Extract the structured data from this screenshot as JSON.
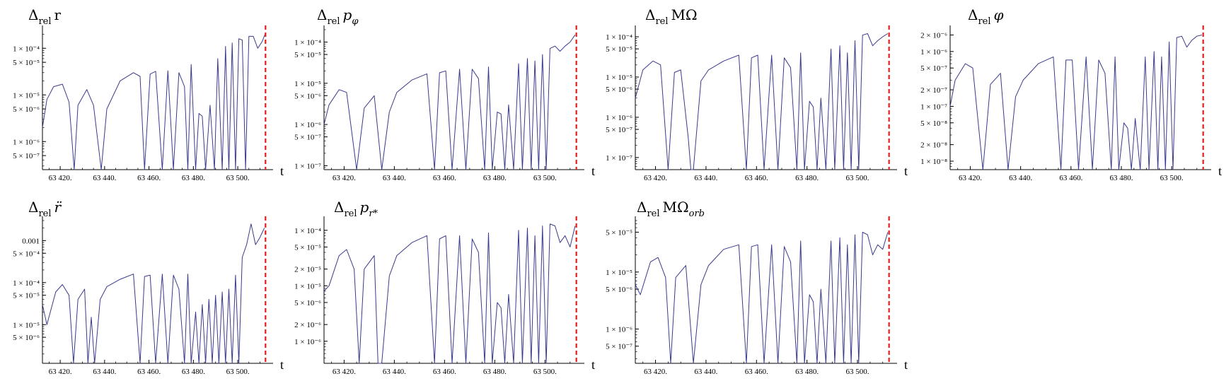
{
  "figure": {
    "caption": ""
  },
  "chart_data": [
    {
      "type": "line",
      "title_main": "Δ",
      "title_sub": "rel",
      "title_var": "r",
      "title_var_sub": "",
      "title_var_style": "roman",
      "xlabel": "t",
      "ylabel": "",
      "yscale": "log",
      "xlim": [
        63412,
        63514
      ],
      "ylim": [
        2.5e-07,
        0.00025
      ],
      "xticks": [
        63420,
        63440,
        63460,
        63480,
        63500
      ],
      "xtick_labels": [
        "63 420.",
        "63 440.",
        "63 460.",
        "63 480.",
        "63 500."
      ],
      "yticks": [
        0.0001,
        5e-05,
        1e-05,
        5e-06,
        1e-06,
        5e-07
      ],
      "ytick_labels": [
        "1 × 10⁻⁴",
        "5 × 10⁻⁵",
        "1 × 10⁻⁵",
        "5 × 10⁻⁶",
        "1 × 10⁻⁶",
        "5 × 10⁻⁷"
      ],
      "vline_x": 63512.5,
      "series": [
        {
          "x": [
            63412,
            63414,
            63417,
            63421,
            63424,
            63426.3,
            63428,
            63432,
            63435,
            63438.5,
            63441,
            63447,
            63453,
            63456,
            63458,
            63460.5,
            63463,
            63466,
            63468.5,
            63471,
            63473.5,
            63476,
            63477.5,
            63479,
            63481,
            63482.5,
            63484,
            63485.5,
            63487.5,
            63489.5,
            63491,
            63493,
            63494.5,
            63496,
            63497.5,
            63499,
            63500.5,
            63502,
            63503.5,
            63505,
            63507,
            63509,
            63511,
            63512.3
          ],
          "y": [
            2e-06,
            8e-06,
            1.5e-05,
            1.7e-05,
            7e-06,
            2.5e-07,
            6e-06,
            1.3e-05,
            6e-06,
            2.5e-07,
            5e-06,
            2e-05,
            3e-05,
            2.5e-05,
            2.5e-07,
            2.8e-05,
            3.2e-05,
            2.5e-07,
            3.3e-05,
            2.5e-07,
            3e-05,
            1.5e-05,
            2.5e-07,
            4.5e-05,
            2.5e-07,
            4e-06,
            3.5e-06,
            2.5e-07,
            6e-06,
            2.5e-07,
            6e-05,
            2.5e-07,
            0.00011,
            2.5e-07,
            0.00013,
            2.5e-07,
            0.00016,
            0.00015,
            2.5e-07,
            0.00018,
            0.00018,
            0.0001,
            0.00014,
            0.0002
          ]
        }
      ]
    },
    {
      "type": "line",
      "title_main": "Δ",
      "title_sub": "rel",
      "title_var": "p",
      "title_var_sub": "φ",
      "title_var_style": "italic",
      "xlabel": "t",
      "ylabel": "",
      "yscale": "log",
      "xlim": [
        63412,
        63514
      ],
      "ylim": [
        8e-08,
        0.0002
      ],
      "xticks": [
        63420,
        63440,
        63460,
        63480,
        63500
      ],
      "xtick_labels": [
        "63 420.",
        "63 440.",
        "63 460.",
        "63 480.",
        "63 500."
      ],
      "yticks": [
        0.0001,
        5e-05,
        1e-05,
        5e-06,
        1e-06,
        5e-07,
        1e-07
      ],
      "ytick_labels": [
        "1 × 10⁻⁴",
        "5 × 10⁻⁵",
        "1 × 10⁻⁵",
        "5 × 10⁻⁶",
        "1 × 10⁻⁶",
        "5 × 10⁻⁷",
        "1 × 10⁻⁷"
      ],
      "vline_x": 63512.5,
      "series": [
        {
          "x": [
            63412,
            63414,
            63418,
            63421,
            63425,
            63428,
            63432,
            63435,
            63438,
            63441,
            63447,
            63453,
            63456,
            63458,
            63460.5,
            63463,
            63466,
            63468.5,
            63471,
            63473.5,
            63476,
            63477.5,
            63479,
            63481,
            63482.5,
            63484,
            63485.5,
            63487.5,
            63489.5,
            63491,
            63493,
            63494.5,
            63496,
            63497.5,
            63499,
            63500.5,
            63502,
            63504,
            63506,
            63508,
            63510,
            63512
          ],
          "y": [
            1e-06,
            3e-06,
            7e-06,
            6e-06,
            8e-08,
            2.5e-06,
            5e-06,
            8e-08,
            2e-06,
            6e-06,
            1.2e-05,
            1.7e-05,
            8e-08,
            1.8e-05,
            2e-05,
            8e-08,
            2.2e-05,
            8e-08,
            2.2e-05,
            1.3e-05,
            8e-08,
            2.5e-05,
            8e-08,
            2e-06,
            1.8e-06,
            8e-08,
            3e-06,
            8e-08,
            3e-05,
            8e-08,
            4e-05,
            8e-08,
            3.5e-05,
            8e-08,
            5e-05,
            8e-08,
            7e-05,
            8e-05,
            6e-05,
            8e-05,
            0.0001,
            0.00015
          ]
        }
      ]
    },
    {
      "type": "line",
      "title_main": "Δ",
      "title_sub": "rel",
      "title_var": "MΩ",
      "title_var_sub": "",
      "title_var_style": "roman",
      "xlabel": "t",
      "ylabel": "",
      "yscale": "log",
      "xlim": [
        63412,
        63514
      ],
      "ylim": [
        5e-08,
        0.00015
      ],
      "xticks": [
        63420,
        63440,
        63460,
        63480,
        63500
      ],
      "xtick_labels": [
        "63 420.",
        "63 440.",
        "63 460.",
        "63 480.",
        "63 500."
      ],
      "yticks": [
        0.0001,
        5e-05,
        1e-05,
        5e-06,
        1e-06,
        5e-07,
        1e-07
      ],
      "ytick_labels": [
        "1 × 10⁻⁴",
        "5 × 10⁻⁵",
        "1 × 10⁻⁵",
        "5 × 10⁻⁶",
        "1 × 10⁻⁶",
        "5 × 10⁻⁷",
        "1 × 10⁻⁷"
      ],
      "vline_x": 63512.5,
      "series": [
        {
          "x": [
            63412,
            63415,
            63419,
            63422,
            63425,
            63427.5,
            63430,
            63433,
            63434,
            63435,
            63438,
            63441,
            63447,
            63453,
            63456,
            63458,
            63460.5,
            63463,
            63466,
            63468.5,
            63471,
            63473.5,
            63476,
            63477.5,
            63479,
            63481,
            63482.5,
            63484,
            63485.5,
            63487.5,
            63489.5,
            63491,
            63493,
            63494.5,
            63496,
            63497.5,
            63499,
            63500.5,
            63502,
            63504,
            63506,
            63508,
            63510,
            63512
          ],
          "y": [
            3e-06,
            1.5e-05,
            2.5e-05,
            2e-05,
            5e-08,
            1.3e-05,
            1.5e-05,
            3e-07,
            5e-08,
            5e-08,
            8e-06,
            1.5e-05,
            2.5e-05,
            3.5e-05,
            5e-08,
            3e-05,
            3.5e-05,
            5e-08,
            3.5e-05,
            5e-08,
            3e-05,
            1.7e-05,
            5e-08,
            4e-05,
            5e-08,
            2.5e-06,
            1.8e-06,
            5e-08,
            3e-06,
            5e-08,
            5e-05,
            5e-08,
            6e-05,
            5e-08,
            4e-05,
            5e-08,
            8e-05,
            5e-08,
            0.00011,
            0.00012,
            6e-05,
            8e-05,
            0.0001,
            0.00012
          ]
        }
      ]
    },
    {
      "type": "line",
      "title_main": "Δ",
      "title_sub": "rel",
      "title_var": "φ",
      "title_var_sub": "",
      "title_var_style": "italic",
      "xlabel": "t",
      "ylabel": "",
      "yscale": "log",
      "xlim": [
        63412,
        63514
      ],
      "ylim": [
        7e-09,
        2.5e-06
      ],
      "xticks": [
        63420,
        63440,
        63460,
        63480,
        63500
      ],
      "xtick_labels": [
        "63 420.",
        "63 440.",
        "63 460.",
        "63 480.",
        "63 500."
      ],
      "yticks": [
        2e-06,
        1e-06,
        5e-07,
        2e-07,
        1e-07,
        5e-08,
        2e-08,
        1e-08
      ],
      "ytick_labels": [
        "2 × 10⁻⁶",
        "1 × 10⁻⁶",
        "5 × 10⁻⁷",
        "2 × 10⁻⁷",
        "1 × 10⁻⁷",
        "5 × 10⁻⁸",
        "2 × 10⁻⁸",
        "1 × 10⁻⁸"
      ],
      "vline_x": 63512.5,
      "series": [
        {
          "x": [
            63412,
            63414,
            63418,
            63421,
            63425,
            63428,
            63432,
            63435,
            63438,
            63441,
            63447,
            63453,
            63456,
            63458,
            63460.5,
            63463,
            63466,
            63468.5,
            63471,
            63473.5,
            63476,
            63477.5,
            63479,
            63481,
            63482.5,
            63484,
            63485.5,
            63487.5,
            63489.5,
            63491,
            63493,
            63494.5,
            63496,
            63497.5,
            63499,
            63500.5,
            63502,
            63504,
            63506,
            63508,
            63510,
            63512
          ],
          "y": [
            1e-07,
            3e-07,
            6e-07,
            5e-07,
            7e-09,
            2.5e-07,
            4e-07,
            7e-09,
            1.5e-07,
            3e-07,
            6e-07,
            8e-07,
            7e-09,
            7e-07,
            7e-07,
            7e-09,
            8e-07,
            7e-09,
            7e-07,
            4e-07,
            7e-09,
            8e-07,
            7e-09,
            5e-08,
            4e-08,
            7e-09,
            6e-08,
            7e-09,
            8e-07,
            7e-09,
            1e-06,
            7e-09,
            8e-07,
            7e-09,
            1.5e-06,
            7e-09,
            1.8e-06,
            1.9e-06,
            1.2e-06,
            1.6e-06,
            1.9e-06,
            2e-06
          ]
        }
      ]
    },
    {
      "type": "line",
      "title_main": "Δ",
      "title_sub": "rel",
      "title_var": "r̈",
      "title_var_sub": "",
      "title_var_style": "italic",
      "xlabel": "t",
      "ylabel": "",
      "yscale": "log",
      "xlim": [
        63412,
        63514
      ],
      "ylim": [
        1.2e-06,
        0.003
      ],
      "xticks": [
        63420,
        63440,
        63460,
        63480,
        63500
      ],
      "xtick_labels": [
        "63 420.",
        "63 440.",
        "63 460.",
        "63 480.",
        "63 500."
      ],
      "yticks": [
        0.001,
        0.0005,
        0.0001,
        5e-05,
        1e-05,
        5e-06
      ],
      "ytick_labels": [
        "0.001",
        "5 × 10⁻⁴",
        "1 × 10⁻⁴",
        "5 × 10⁻⁵",
        "1 × 10⁻⁵",
        "5 × 10⁻⁶"
      ],
      "vline_x": 63512.5,
      "series": [
        {
          "x": [
            63412,
            63414,
            63418,
            63421,
            63424,
            63426,
            63428,
            63431,
            63432.5,
            63434,
            63435.5,
            63438,
            63441,
            63447,
            63453,
            63456,
            63458,
            63460.5,
            63463,
            63466,
            63468.5,
            63471,
            63473.5,
            63476,
            63477.5,
            63479,
            63481,
            63482.5,
            63484,
            63485.5,
            63487,
            63488.5,
            63490,
            63491.5,
            63493,
            63494.5,
            63496,
            63497.5,
            63499,
            63500.5,
            63502,
            63504,
            63506,
            63508,
            63510,
            63512
          ],
          "y": [
            3e-05,
            1e-05,
            6e-05,
            9e-05,
            5e-05,
            1.2e-06,
            4e-05,
            7e-05,
            1.2e-06,
            1.5e-05,
            1.2e-06,
            4e-05,
            8e-05,
            0.00012,
            0.00016,
            1.2e-06,
            0.00014,
            0.00015,
            1.2e-06,
            0.00016,
            1.2e-06,
            0.00015,
            7e-05,
            1.2e-06,
            0.00016,
            1.2e-06,
            2e-05,
            1.2e-06,
            3e-05,
            1.2e-06,
            4e-05,
            1.2e-06,
            5e-05,
            1.2e-06,
            6e-05,
            1.2e-06,
            7e-05,
            1.2e-06,
            0.00015,
            1.2e-06,
            0.0004,
            0.0008,
            0.0025,
            0.0008,
            0.0012,
            0.002
          ]
        }
      ]
    },
    {
      "type": "line",
      "title_main": "Δ",
      "title_sub": "rel",
      "title_var": "p",
      "title_var_sub": "r*",
      "title_var_style": "italic",
      "xlabel": "t",
      "ylabel": "",
      "yscale": "log",
      "xlim": [
        63412,
        63514
      ],
      "ylim": [
        4e-07,
        0.00015
      ],
      "xticks": [
        63420,
        63440,
        63460,
        63480,
        63500
      ],
      "xtick_labels": [
        "63 420.",
        "63 440.",
        "63 460.",
        "63 480.",
        "63 500."
      ],
      "yticks": [
        0.0001,
        5e-05,
        2e-05,
        1e-05,
        5e-06,
        2e-06,
        1e-06
      ],
      "ytick_labels": [
        "1 × 10⁻⁴",
        "5 × 10⁻⁵",
        "2 × 10⁻⁵",
        "1 × 10⁻⁵",
        "5 × 10⁻⁶",
        "2 × 10⁻⁶",
        "1 × 10⁻⁶"
      ],
      "vline_x": 63512.5,
      "series": [
        {
          "x": [
            63412,
            63414,
            63418,
            63421,
            63424,
            63426,
            63428,
            63432,
            63433.5,
            63435,
            63438,
            63441,
            63447,
            63453,
            63456,
            63458,
            63460.5,
            63463,
            63466,
            63468.5,
            63471,
            63473.5,
            63476,
            63477.5,
            63479,
            63481,
            63482.5,
            63484,
            63485.5,
            63487.5,
            63489.5,
            63491,
            63493,
            63494.5,
            63496,
            63497.5,
            63499,
            63500.5,
            63502,
            63504,
            63506,
            63508,
            63510,
            63512
          ],
          "y": [
            8e-06,
            1e-05,
            3.5e-05,
            4.5e-05,
            2e-05,
            4e-07,
            2e-05,
            3.5e-05,
            4e-07,
            4e-07,
            1.5e-05,
            3.5e-05,
            6e-05,
            8e-05,
            4e-07,
            7e-05,
            8e-05,
            4e-07,
            8e-05,
            4e-07,
            7e-05,
            4e-05,
            4e-07,
            9e-05,
            4e-07,
            5e-06,
            4e-06,
            4e-07,
            7e-06,
            4e-07,
            0.0001,
            4e-07,
            0.00011,
            4e-07,
            8e-05,
            4e-07,
            0.00012,
            4e-07,
            0.00013,
            0.00012,
            6e-05,
            8e-05,
            5e-05,
            0.00012
          ]
        }
      ]
    },
    {
      "type": "line",
      "title_main": "Δ",
      "title_sub": "rel",
      "title_var": "MΩ",
      "title_var_sub": "orb",
      "title_var_style": "roman",
      "xlabel": "t",
      "ylabel": "",
      "yscale": "log",
      "xlim": [
        63412,
        63514
      ],
      "ylim": [
        2.5e-07,
        8e-05
      ],
      "xticks": [
        63420,
        63440,
        63460,
        63480,
        63500
      ],
      "xtick_labels": [
        "63 420.",
        "63 440.",
        "63 460.",
        "63 480.",
        "63 500."
      ],
      "yticks": [
        5e-05,
        1e-05,
        5e-06,
        1e-06,
        5e-07
      ],
      "ytick_labels": [
        "5 × 10⁻⁵",
        "1 × 10⁻⁵",
        "5 × 10⁻⁶",
        "1 × 10⁻⁶",
        "5 × 10⁻⁷"
      ],
      "vline_x": 63512.5,
      "series": [
        {
          "x": [
            63412,
            63414,
            63418,
            63421,
            63424,
            63426,
            63428,
            63432,
            63435,
            63438,
            63441,
            63447,
            63453,
            63456,
            63458,
            63460.5,
            63463,
            63466,
            63468.5,
            63471,
            63473.5,
            63476,
            63477.5,
            63479,
            63481,
            63482.5,
            63484,
            63485.5,
            63487.5,
            63489.5,
            63491,
            63493,
            63494.5,
            63496,
            63497.5,
            63499,
            63500.5,
            63502,
            63504,
            63506,
            63508,
            63510,
            63512
          ],
          "y": [
            6e-06,
            4e-06,
            1.5e-05,
            1.8e-05,
            8e-06,
            2.5e-07,
            8e-06,
            1.3e-05,
            2.5e-07,
            6e-06,
            1.3e-05,
            2.5e-05,
            3e-05,
            2.5e-07,
            2.8e-05,
            3e-05,
            2.5e-07,
            3e-05,
            2.5e-07,
            2.8e-05,
            1.5e-05,
            2.5e-07,
            3.5e-05,
            2.5e-07,
            4e-06,
            3e-06,
            2.5e-07,
            5e-06,
            2.5e-07,
            3.5e-05,
            2.5e-07,
            4e-05,
            2.5e-07,
            3e-05,
            2.5e-07,
            4.5e-05,
            2.5e-07,
            5e-05,
            4.5e-05,
            2e-05,
            3e-05,
            2.5e-05,
            5e-05
          ]
        }
      ]
    }
  ]
}
